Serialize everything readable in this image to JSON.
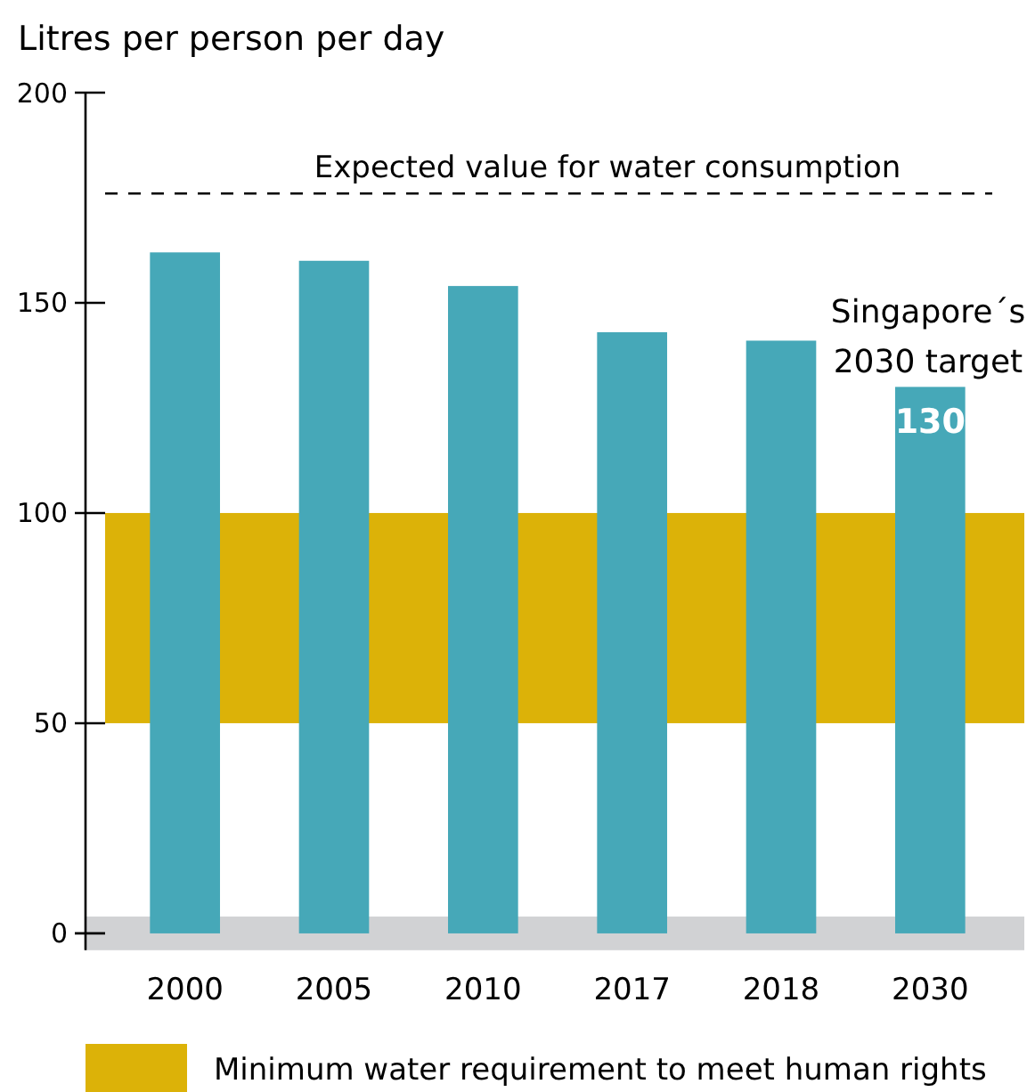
{
  "chart_data": {
    "type": "bar",
    "ylabel": "Litres per person per day",
    "categories": [
      "2000",
      "2005",
      "2010",
      "2017",
      "2018",
      "2030"
    ],
    "values": [
      162,
      160,
      154,
      143,
      141,
      130
    ],
    "color": "#46a8b8",
    "value_labels": [
      null,
      null,
      null,
      null,
      null,
      "130"
    ],
    "ylim": [
      -4,
      200
    ],
    "yticks": [
      0,
      50,
      100,
      150,
      200
    ],
    "grid": false,
    "legend": "bottom",
    "ref_lines": [
      {
        "axis": "y",
        "value": 176,
        "label": "Expected value for water consumption",
        "color": "#000000",
        "line_style": "dashed"
      }
    ],
    "bands": [
      {
        "axis": "y",
        "from": 50,
        "to": 100,
        "label": "Minimum water requirement to meet human rights",
        "color": "#dcb208"
      },
      {
        "axis": "y",
        "from": -4,
        "to": 4,
        "color": "#d1d2d4"
      }
    ],
    "annotations": [
      {
        "text": "Singapore´s 2030 target",
        "x": "2030",
        "y": 130
      }
    ]
  }
}
